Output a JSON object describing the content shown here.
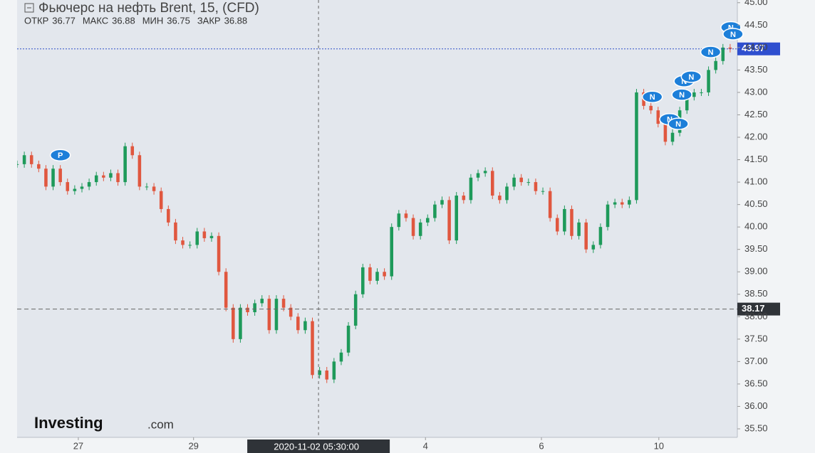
{
  "chart_data": {
    "type": "candlestick",
    "title": "Фьючерс на нефть Brent, 15, (CFD)",
    "ohlc": [
      {
        "label": "ОТКР",
        "value": 36.77
      },
      {
        "label": "МАКС",
        "value": 36.88
      },
      {
        "label": "МИН",
        "value": 36.75
      },
      {
        "label": "ЗАКР",
        "value": 36.88
      }
    ],
    "up_color": "#1e9a5a",
    "down_color": "#e0573f",
    "x": [
      0,
      1,
      2,
      3,
      4,
      5,
      6,
      7,
      8,
      9,
      10,
      11,
      12,
      13,
      14,
      15,
      16,
      17,
      18,
      19,
      20,
      21,
      22,
      23,
      24,
      25,
      26,
      27,
      28,
      29,
      30,
      31,
      32,
      33,
      34,
      35,
      36,
      37,
      38,
      39,
      40,
      41,
      42,
      43,
      44,
      45,
      46,
      47,
      48,
      49,
      50,
      51,
      52,
      53,
      54,
      55,
      56,
      57,
      58,
      59,
      60,
      61,
      62,
      63,
      64,
      65,
      66,
      67,
      68,
      69,
      70,
      71,
      72,
      73,
      74,
      75,
      76,
      77,
      78,
      79,
      80,
      81,
      82,
      83,
      84,
      85,
      86,
      87,
      88,
      89,
      90,
      91,
      92,
      93,
      94,
      95,
      96,
      97,
      98,
      99
    ],
    "values": [
      41.4,
      41.6,
      41.4,
      41.3,
      40.9,
      41.3,
      41.0,
      40.8,
      40.85,
      40.9,
      41.0,
      41.15,
      41.1,
      41.2,
      41.0,
      41.8,
      41.6,
      40.9,
      40.9,
      40.8,
      40.4,
      40.1,
      39.7,
      39.6,
      39.6,
      39.9,
      39.75,
      39.8,
      39.0,
      38.2,
      37.5,
      38.2,
      38.1,
      38.3,
      38.4,
      37.7,
      38.4,
      38.2,
      38.0,
      37.7,
      37.9,
      36.7,
      36.8,
      36.6,
      37.0,
      37.2,
      37.8,
      38.5,
      39.1,
      38.8,
      39.0,
      38.9,
      40.0,
      40.3,
      40.2,
      39.8,
      40.1,
      40.2,
      40.5,
      40.6,
      39.7,
      40.7,
      40.6,
      41.1,
      41.2,
      41.25,
      40.7,
      40.6,
      40.9,
      41.1,
      41.0,
      41.0,
      40.8,
      40.8,
      40.2,
      39.9,
      40.4,
      39.8,
      40.1,
      39.5,
      39.6,
      40.0,
      40.5,
      40.55,
      40.5,
      40.6,
      43.0,
      42.7,
      42.6,
      42.3,
      41.9,
      42.1,
      42.6,
      42.9,
      43.0,
      43.0,
      43.5,
      43.7,
      44.0,
      43.97
    ],
    "xlim": [
      0,
      100
    ],
    "xticks": [
      {
        "value": 8.5,
        "label": "27"
      },
      {
        "value": 24.5,
        "label": "29"
      },
      {
        "value": 56.7,
        "label": "4"
      },
      {
        "value": 72.8,
        "label": "6"
      },
      {
        "value": 89.1,
        "label": "10"
      }
    ],
    "ylim": [
      35.31,
      45.06
    ],
    "yticks": [
      {
        "value": 35.5,
        "label": "35.50"
      },
      {
        "value": 36,
        "label": "36.00"
      },
      {
        "value": 36.5,
        "label": "36.50"
      },
      {
        "value": 37,
        "label": "37.00"
      },
      {
        "value": 37.5,
        "label": "37.50"
      },
      {
        "value": 38,
        "label": "38.00"
      },
      {
        "value": 38.5,
        "label": "38.50"
      },
      {
        "value": 39,
        "label": "39.00"
      },
      {
        "value": 39.5,
        "label": "39.50"
      },
      {
        "value": 40,
        "label": "40.00"
      },
      {
        "value": 40.5,
        "label": "40.50"
      },
      {
        "value": 41,
        "label": "41.00"
      },
      {
        "value": 41.5,
        "label": "41.50"
      },
      {
        "value": 42,
        "label": "42.00"
      },
      {
        "value": 42.5,
        "label": "42.50"
      },
      {
        "value": 43,
        "label": "43.00"
      },
      {
        "value": 43.5,
        "label": "43.50"
      },
      {
        "value": 44,
        "label": "44.00"
      },
      {
        "value": 44.5,
        "label": "44.50"
      },
      {
        "value": 45,
        "label": "45.00"
      }
    ],
    "last_price": 43.97,
    "crosshair": {
      "x": 41.85,
      "x_label": "2020-11-02 05:30:00",
      "y": 38.17
    },
    "events": [
      {
        "label": "P",
        "x": 6,
        "y": 41.6
      },
      {
        "label": "N",
        "x": 88.2,
        "y": 42.9
      },
      {
        "label": "N",
        "x": 90.6,
        "y": 42.4
      },
      {
        "label": "N",
        "x": 91.8,
        "y": 42.3
      },
      {
        "label": "N",
        "x": 92.3,
        "y": 42.95
      },
      {
        "label": "N",
        "x": 92.6,
        "y": 43.25
      },
      {
        "label": "N",
        "x": 93.6,
        "y": 43.35
      },
      {
        "label": "N",
        "x": 96.3,
        "y": 43.9
      },
      {
        "label": "N",
        "x": 99.1,
        "y": 44.45
      },
      {
        "label": "N",
        "x": 99.4,
        "y": 44.3
      }
    ],
    "logo": [
      "Investing",
      ".com"
    ]
  }
}
